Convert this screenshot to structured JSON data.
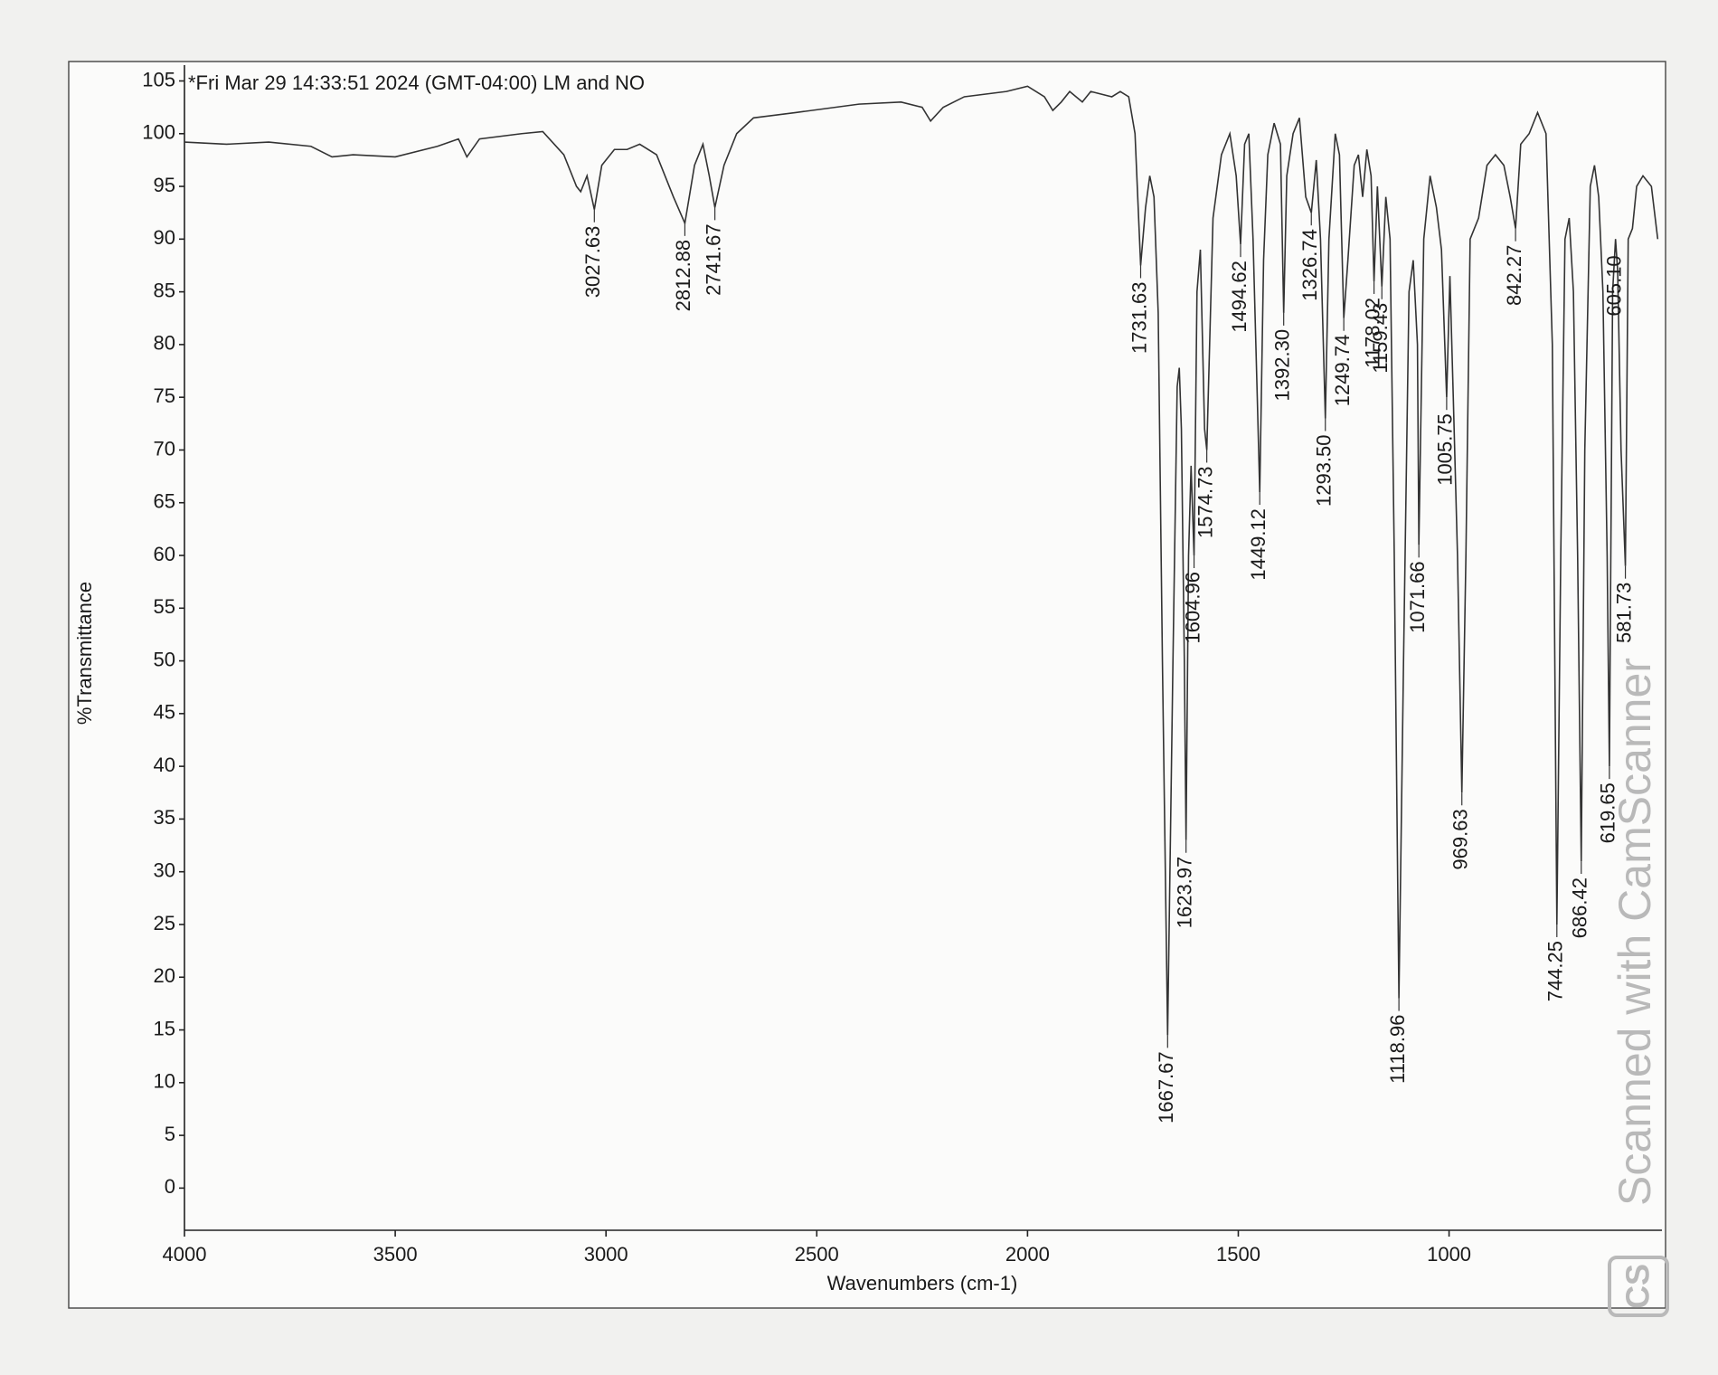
{
  "chart_data": {
    "type": "line",
    "title": "*Fri Mar 29 14:33:51 2024 (GMT-04:00) LM and NO",
    "x_label": "Wavenumbers (cm-1)",
    "y_label": "%Transmittance",
    "watermark": "Scanned with CamScanner",
    "watermark_logo": "CS",
    "color": "#333333",
    "grid": false,
    "xlim": [
      4000,
      495
    ],
    "ylim": [
      -4,
      106.5
    ],
    "xticks": [
      4000,
      3500,
      3000,
      2500,
      2000,
      1500,
      1000
    ],
    "yticks": [
      0,
      5,
      10,
      15,
      20,
      25,
      30,
      35,
      40,
      45,
      50,
      55,
      60,
      65,
      70,
      75,
      80,
      85,
      90,
      95,
      100,
      105
    ],
    "x": [
      4000,
      3900,
      3800,
      3700,
      3650,
      3600,
      3500,
      3400,
      3350,
      3330,
      3300,
      3200,
      3150,
      3100,
      3070,
      3060,
      3045,
      3027.63,
      3010,
      2980,
      2950,
      2920,
      2880,
      2840,
      2812.88,
      2790,
      2770,
      2755,
      2741.67,
      2720,
      2690,
      2650,
      2550,
      2400,
      2300,
      2250,
      2230,
      2200,
      2150,
      2050,
      2000,
      1960,
      1940,
      1920,
      1900,
      1870,
      1850,
      1800,
      1780,
      1760,
      1745,
      1731.63,
      1720,
      1710,
      1700,
      1690,
      1680,
      1667.67,
      1655,
      1645,
      1640,
      1635,
      1628,
      1623.97,
      1618,
      1612,
      1604.96,
      1598,
      1590,
      1580,
      1574.73,
      1568,
      1560,
      1540,
      1520,
      1505,
      1494.62,
      1485,
      1475,
      1465,
      1455,
      1449.12,
      1440,
      1430,
      1415,
      1400,
      1392.3,
      1385,
      1370,
      1355,
      1340,
      1326.74,
      1315,
      1305,
      1293.5,
      1285,
      1270,
      1260,
      1249.74,
      1240,
      1225,
      1215,
      1205,
      1195,
      1185,
      1178.02,
      1170,
      1159.43,
      1150,
      1140,
      1130,
      1118.96,
      1108,
      1095,
      1085,
      1075,
      1071.66,
      1060,
      1045,
      1030,
      1018,
      1005.75,
      998,
      990,
      980,
      969.63,
      960,
      950,
      930,
      910,
      890,
      870,
      855,
      842.27,
      830,
      810,
      790,
      770,
      755,
      744.25,
      735,
      725,
      715,
      705,
      695,
      686.42,
      678,
      665,
      655,
      645,
      635,
      625,
      619.65,
      612,
      605.1,
      600,
      592,
      581.73,
      575,
      565,
      555,
      540,
      520,
      505
    ],
    "values": [
      99.2,
      99,
      99.2,
      98.8,
      97.8,
      98,
      97.8,
      98.8,
      99.5,
      97.8,
      99.5,
      100,
      100.2,
      98,
      95,
      94.5,
      96,
      92.8,
      97,
      98.5,
      98.5,
      99,
      98,
      94,
      91.5,
      97,
      99,
      96,
      93,
      97,
      100,
      101.5,
      102,
      102.8,
      103,
      102.5,
      101.2,
      102.5,
      103.5,
      104,
      104.5,
      103.5,
      102.2,
      103,
      104,
      103,
      104,
      103.5,
      104,
      103.5,
      100,
      87.5,
      93,
      96,
      94,
      83,
      50,
      14.5,
      50,
      76,
      77.8,
      72,
      50,
      33,
      60,
      68.5,
      60,
      85,
      89,
      72,
      70,
      80,
      92,
      98,
      100,
      96,
      89.5,
      99,
      100,
      90,
      75,
      66,
      88,
      98,
      101,
      99,
      83,
      96,
      100,
      101.5,
      94,
      92.5,
      97.5,
      90,
      73,
      90,
      100,
      98,
      82.5,
      88,
      97,
      98,
      94,
      98.5,
      96,
      86,
      95,
      85.5,
      94,
      90,
      60,
      18,
      50,
      85,
      88,
      80,
      61,
      90,
      96,
      93,
      89,
      75,
      86.5,
      75,
      60,
      37.5,
      60,
      90,
      92,
      97,
      98,
      97,
      94,
      91,
      99,
      100,
      102,
      100,
      80,
      25,
      60,
      90,
      92,
      85,
      60,
      31,
      70,
      95,
      97,
      94,
      85,
      60,
      40,
      85,
      90,
      87,
      70,
      59,
      90,
      91,
      95,
      96,
      95,
      90
    ],
    "peaks": [
      "3027.63",
      "2812.88",
      "2741.67",
      "1731.63",
      "1667.67",
      "1623.97",
      "1604.96",
      "1574.73",
      "1494.62",
      "1449.12",
      "1392.30",
      "1326.74",
      "1293.50",
      "1249.74",
      "1178.02",
      "1159.43",
      "1118.96",
      "1071.66",
      "1005.75",
      "969.63",
      "842.27",
      "744.25",
      "686.42",
      "619.65",
      "605.10",
      "581.73"
    ]
  }
}
